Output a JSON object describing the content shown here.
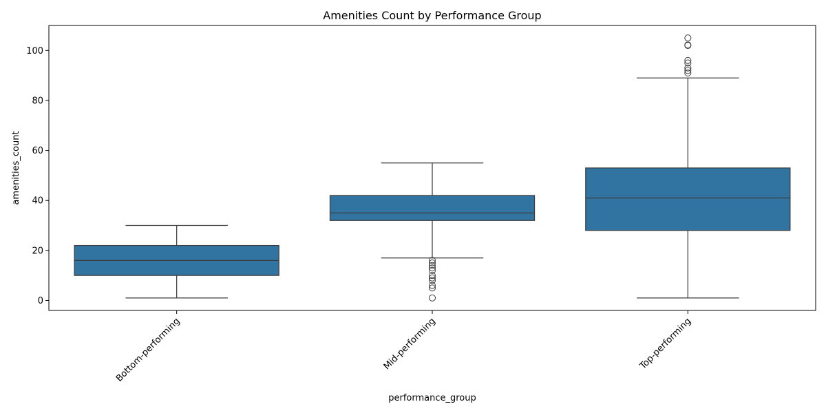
{
  "chart_data": {
    "type": "box",
    "title": "Amenities Count by Performance Group",
    "xlabel": "performance_group",
    "ylabel": "amenities_count",
    "ylim": [
      -4,
      110
    ],
    "yticks": [
      0,
      20,
      40,
      60,
      80,
      100
    ],
    "grid": false,
    "legend": "none",
    "box_color": "#3274a1",
    "line_color": "#3d3d3d",
    "categories": [
      "Bottom-performing",
      "Mid-performing",
      "Top-performing"
    ],
    "boxes": [
      {
        "category": "Bottom-performing",
        "whisker_low": 1,
        "q1": 10,
        "median": 16,
        "q3": 22,
        "whisker_high": 30,
        "outliers": []
      },
      {
        "category": "Mid-performing",
        "whisker_low": 17,
        "q1": 32,
        "median": 35,
        "q3": 42,
        "whisker_high": 55,
        "outliers": [
          1,
          5,
          6,
          8,
          9,
          10,
          12,
          13,
          14,
          15,
          16
        ]
      },
      {
        "category": "Top-performing",
        "whisker_low": 1,
        "q1": 28,
        "median": 41,
        "q3": 53,
        "whisker_high": 89,
        "outliers": [
          91,
          92,
          93,
          95,
          96,
          102,
          102.2,
          105
        ]
      }
    ]
  }
}
